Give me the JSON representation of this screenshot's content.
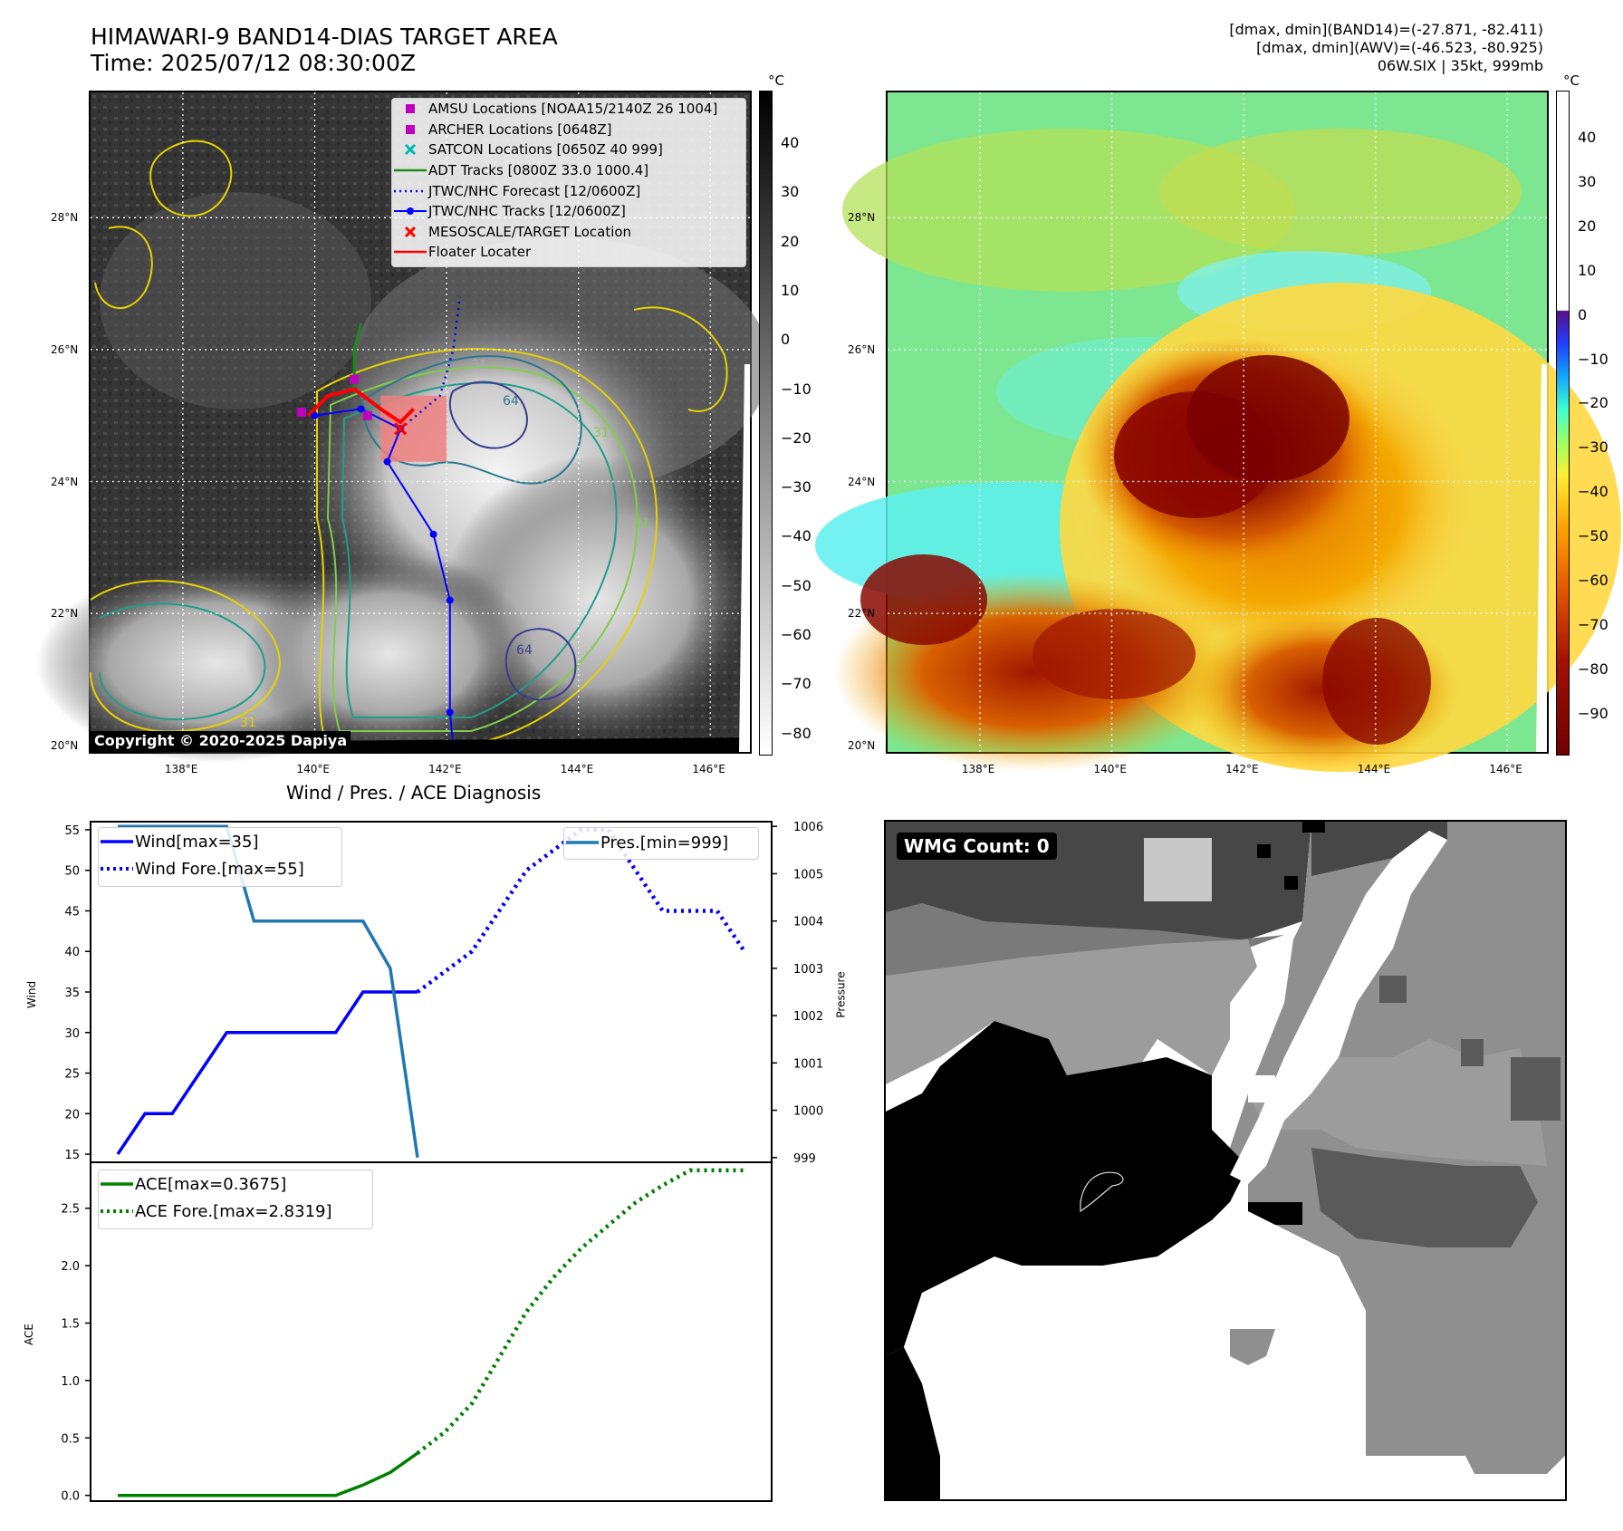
{
  "header": {
    "title_line1": "HIMAWARI-9 BAND14-DIAS TARGET AREA",
    "title_line2": "Time: 2025/07/12 08:30:00Z",
    "info_line1": "[dmax, dmin](BAND14)=(-27.871, -82.411)",
    "info_line2": "[dmax, dmin](AWV)=(-46.523, -80.925)",
    "info_line3": "06W.SIX | 35kt, 999mb"
  },
  "map": {
    "lat_labels": [
      "28°N",
      "26°N",
      "24°N",
      "22°N",
      "20°N"
    ],
    "lon_labels": [
      "138°E",
      "140°E",
      "142°E",
      "144°E",
      "146°E"
    ],
    "copyright": "Copyright © 2020-2025 Dapiya",
    "contour_labels": [
      "31",
      "64",
      "31",
      "31",
      "64",
      "31"
    ],
    "colors": {
      "adt": "#1a8a1a",
      "jtwc": "#0000ff",
      "amsu": "#c000c0",
      "satcon": "#00b7b7",
      "target": "#ff0000",
      "floater": "#ff0000",
      "target_area": "#f08080"
    },
    "legend": [
      {
        "label": "AMSU Locations [NOAA15/2140Z 26 1004]",
        "symbol": "square",
        "color": "#c000c0"
      },
      {
        "label": "ARCHER Locations [0648Z]",
        "symbol": "square",
        "color": "#c000c0"
      },
      {
        "label": "SATCON Locations [0650Z 40 999]",
        "symbol": "x",
        "color": "#00b7b7"
      },
      {
        "label": "ADT Tracks [0800Z 33.0 1000.4]",
        "symbol": "line",
        "color": "#1a8a1a"
      },
      {
        "label": "JTWC/NHC Forecast [12/0600Z]",
        "symbol": "dotted",
        "color": "#0000ff"
      },
      {
        "label": "JTWC/NHC Tracks [12/0600Z]",
        "symbol": "line-dot",
        "color": "#0000ff"
      },
      {
        "label": "MESOSCALE/TARGET Location",
        "symbol": "x",
        "color": "#ff0000"
      },
      {
        "label": "Floater Locater",
        "symbol": "line",
        "color": "#ff0000"
      }
    ],
    "jtwc_track": [
      [
        140.0,
        25.0
      ],
      [
        140.7,
        25.1
      ],
      [
        141.3,
        24.8
      ],
      [
        141.1,
        24.3
      ],
      [
        141.8,
        23.2
      ],
      [
        142.05,
        22.2
      ],
      [
        142.05,
        20.5
      ],
      [
        142.1,
        20.0
      ]
    ],
    "jtwc_forecast": [
      [
        141.3,
        24.8
      ],
      [
        141.9,
        25.3
      ],
      [
        142.1,
        26.0
      ],
      [
        142.2,
        26.8
      ]
    ],
    "adt_track": [
      [
        140.6,
        25.4
      ],
      [
        140.6,
        26.0
      ],
      [
        140.7,
        26.4
      ]
    ],
    "floater_track": [
      [
        139.9,
        25.0
      ],
      [
        140.2,
        25.3
      ],
      [
        140.6,
        25.4
      ],
      [
        141.0,
        25.1
      ],
      [
        141.3,
        24.9
      ],
      [
        141.5,
        25.1
      ]
    ],
    "amsu_points": [
      [
        139.8,
        25.05
      ],
      [
        140.6,
        25.55
      ],
      [
        140.8,
        25.0
      ]
    ],
    "target_point": [
      141.3,
      24.8
    ],
    "target_area": {
      "lon": [
        141.0,
        142.0
      ],
      "lat": [
        24.3,
        25.3
      ]
    }
  },
  "colorbar_left": {
    "unit": "°C",
    "ticks": [
      "40",
      "30",
      "20",
      "10",
      "0",
      "−10",
      "−20",
      "−30",
      "−40",
      "−50",
      "−60",
      "−70",
      "−80"
    ]
  },
  "colorbar_right": {
    "unit": "°C",
    "ticks": [
      "40",
      "30",
      "20",
      "10",
      "0",
      "−10",
      "−20",
      "−30",
      "−40",
      "−50",
      "−60",
      "−70",
      "−80",
      "−90"
    ]
  },
  "diagnosis": {
    "title": "Wind / Pres. / ACE Diagnosis",
    "wind_ylabel": "Wind",
    "pres_ylabel": "Pressure",
    "ace_ylabel": "ACE",
    "wind_ticks": [
      "55",
      "50",
      "45",
      "40",
      "35",
      "30",
      "25",
      "20",
      "15"
    ],
    "pres_ticks": [
      "1006",
      "1005",
      "1004",
      "1003",
      "1002",
      "1001",
      "1000",
      "999"
    ],
    "ace_ticks": [
      "2.5",
      "2.0",
      "1.5",
      "1.0",
      "0.5",
      "0.0"
    ],
    "legend_wind": [
      "Wind[max=35]",
      "Wind Fore.[max=55]"
    ],
    "legend_pres": [
      "Pres.[min=999]"
    ],
    "legend_ace": [
      "ACE[max=0.3675]",
      "ACE Fore.[max=2.8319]"
    ],
    "colors": {
      "wind": "#0000ff",
      "pres": "#1f77b4",
      "ace": "#008000"
    }
  },
  "wmg": {
    "label": "WMG Count: 0"
  },
  "chart_data": [
    {
      "type": "line",
      "title": "Wind / Pres. / ACE Diagnosis",
      "ylabel": "Wind",
      "ylim": [
        14,
        56
      ],
      "series": [
        {
          "name": "Wind[max=35]",
          "x": [
            0,
            1,
            2,
            3,
            4,
            5,
            6,
            7,
            8,
            9,
            10,
            11
          ],
          "values": [
            15,
            20,
            20,
            25,
            30,
            30,
            30,
            30,
            30,
            35,
            35,
            35
          ]
        },
        {
          "name": "Wind Fore.[max=55]",
          "x": [
            11,
            12,
            13,
            14,
            15,
            16,
            17,
            18,
            19,
            20,
            21,
            22,
            23
          ],
          "values": [
            35,
            37.5,
            40,
            45,
            50,
            52.5,
            55,
            55,
            50,
            45,
            45,
            45,
            40
          ]
        }
      ]
    },
    {
      "type": "line",
      "ylabel": "Pressure",
      "ylim": [
        998.9,
        1006.1
      ],
      "series": [
        {
          "name": "Pres.[min=999]",
          "x": [
            0,
            1,
            2,
            3,
            4,
            5,
            6,
            7,
            8,
            9,
            10,
            11
          ],
          "values": [
            1006,
            1006,
            1006,
            1006,
            1006,
            1004,
            1004,
            1004,
            1004,
            1004,
            1003,
            999
          ]
        }
      ]
    },
    {
      "type": "line",
      "ylabel": "ACE",
      "ylim": [
        -0.05,
        2.9
      ],
      "series": [
        {
          "name": "ACE[max=0.3675]",
          "x": [
            0,
            1,
            2,
            3,
            4,
            5,
            6,
            7,
            8,
            9,
            10,
            11
          ],
          "values": [
            0,
            0,
            0,
            0,
            0,
            0,
            0,
            0,
            0,
            0.09,
            0.2,
            0.3675
          ]
        },
        {
          "name": "ACE Fore.[max=2.8319]",
          "x": [
            11,
            12,
            13,
            14,
            15,
            16,
            17,
            18,
            19,
            20,
            21,
            22,
            23
          ],
          "values": [
            0.3675,
            0.55,
            0.8,
            1.2,
            1.6,
            1.9,
            2.15,
            2.35,
            2.55,
            2.7,
            2.83,
            2.83,
            2.83
          ]
        }
      ]
    }
  ]
}
